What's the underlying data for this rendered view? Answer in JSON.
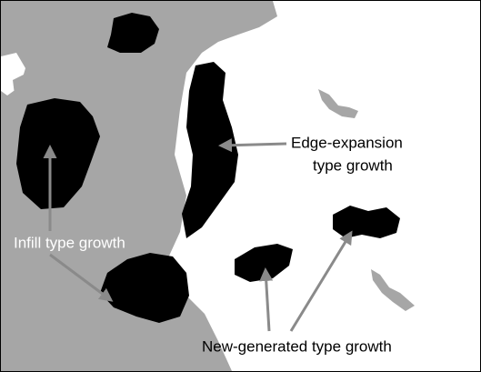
{
  "labels": {
    "edge_expansion": [
      "Edge-expansion",
      "type growth"
    ],
    "infill": "Infill type growth",
    "new_generated": "New-generated type growth"
  }
}
